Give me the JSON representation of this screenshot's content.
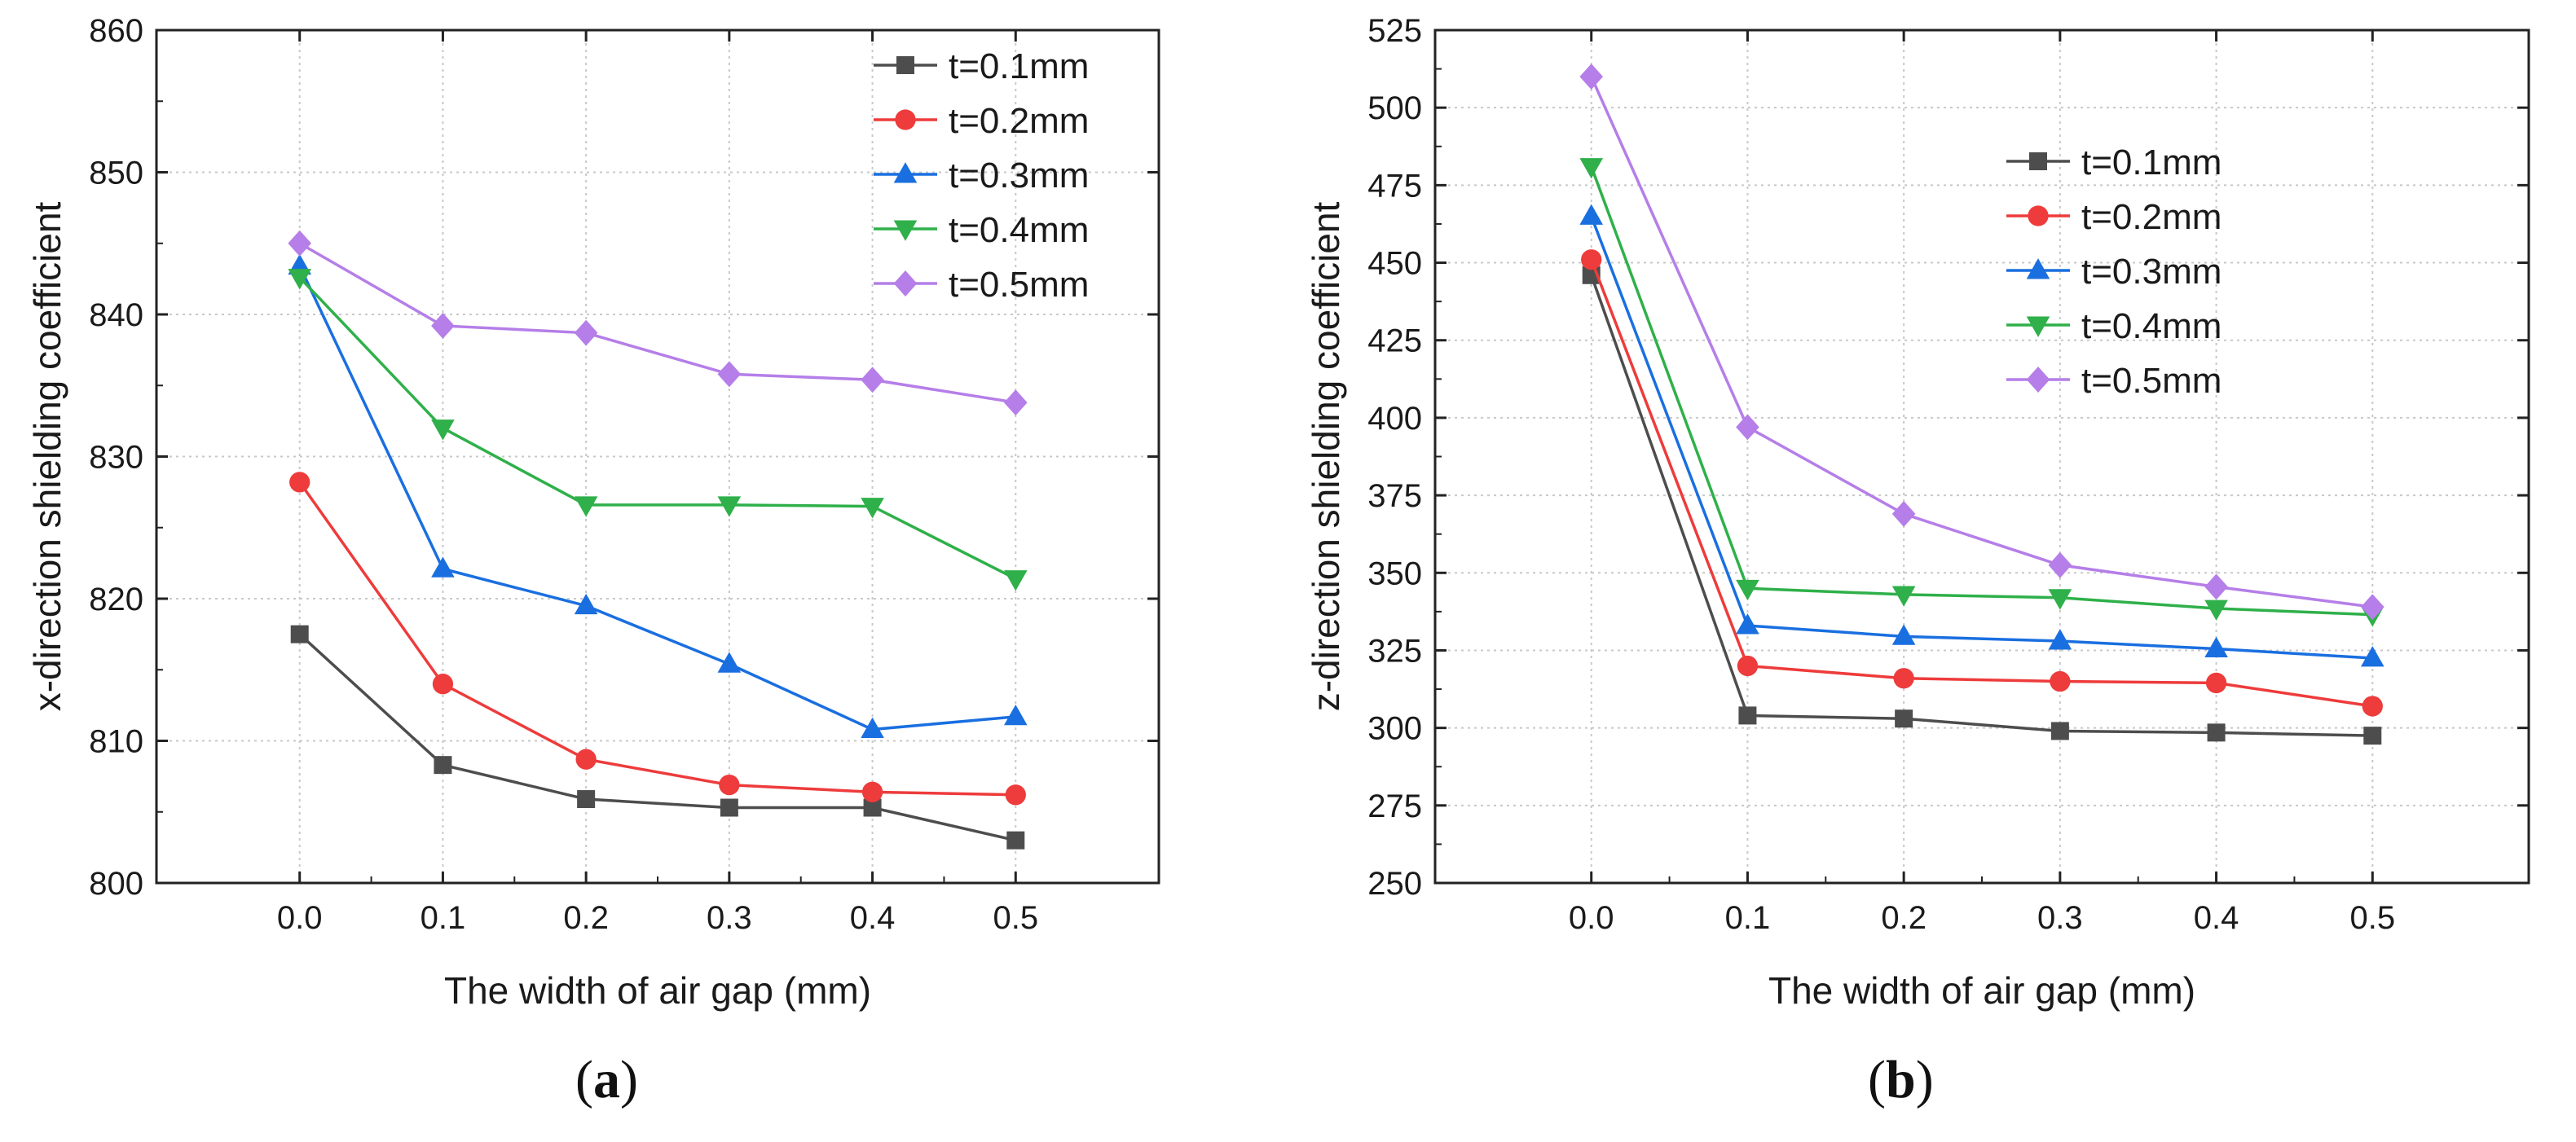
{
  "chart_data": [
    {
      "type": "line",
      "panel": "(a)",
      "title": "",
      "xlabel": "The width of air gap (mm)",
      "ylabel": "x-direction shielding coefficient",
      "x": [
        0.0,
        0.1,
        0.2,
        0.3,
        0.4,
        0.5
      ],
      "x_tick_labels": [
        "0.0",
        "0.1",
        "0.2",
        "0.3",
        "0.4",
        "0.5"
      ],
      "xlim": [
        -0.1,
        0.6
      ],
      "ylim": [
        800,
        860
      ],
      "y_ticks": [
        800,
        810,
        820,
        830,
        840,
        850,
        860
      ],
      "grid": true,
      "legend_position": "top-right",
      "series": [
        {
          "name": "t=0.1mm",
          "color": "#4d4d4d",
          "marker": "square",
          "values": [
            817.5,
            808.3,
            805.9,
            805.3,
            805.3,
            803.0
          ]
        },
        {
          "name": "t=0.2mm",
          "color": "#ee3b3b",
          "marker": "circle",
          "values": [
            828.2,
            814.0,
            808.7,
            806.9,
            806.4,
            806.2
          ]
        },
        {
          "name": "t=0.3mm",
          "color": "#1a6fe0",
          "marker": "triangle-up",
          "values": [
            843.4,
            822.1,
            819.5,
            815.4,
            810.8,
            811.7
          ]
        },
        {
          "name": "t=0.4mm",
          "color": "#2fb04a",
          "marker": "triangle-down",
          "values": [
            842.6,
            832.0,
            826.6,
            826.6,
            826.5,
            821.4
          ]
        },
        {
          "name": "t=0.5mm",
          "color": "#b57ee8",
          "marker": "diamond",
          "values": [
            845.0,
            839.2,
            838.7,
            835.8,
            835.4,
            833.8
          ]
        }
      ]
    },
    {
      "type": "line",
      "panel": "(b)",
      "title": "",
      "xlabel": "The width of air gap (mm)",
      "ylabel": "z-direction shielding coefficient",
      "x": [
        0.0,
        0.1,
        0.2,
        0.3,
        0.4,
        0.5
      ],
      "x_tick_labels": [
        "0.0",
        "0.1",
        "0.2",
        "0.3",
        "0.4",
        "0.5"
      ],
      "xlim": [
        -0.1,
        0.6
      ],
      "ylim": [
        250,
        525
      ],
      "y_ticks": [
        250,
        275,
        300,
        325,
        350,
        375,
        400,
        425,
        450,
        475,
        500,
        525
      ],
      "grid": true,
      "legend_position": "top-center",
      "series": [
        {
          "name": "t=0.1mm",
          "color": "#4d4d4d",
          "marker": "square",
          "values": [
            446,
            304,
            303,
            299,
            298.5,
            297.5
          ]
        },
        {
          "name": "t=0.2mm",
          "color": "#ee3b3b",
          "marker": "circle",
          "values": [
            451,
            320,
            316,
            315,
            314.5,
            307
          ]
        },
        {
          "name": "t=0.3mm",
          "color": "#1a6fe0",
          "marker": "triangle-up",
          "values": [
            465,
            333,
            329.5,
            328,
            325.5,
            322.5
          ]
        },
        {
          "name": "t=0.4mm",
          "color": "#2fb04a",
          "marker": "triangle-down",
          "values": [
            481,
            345,
            343,
            342,
            338.5,
            336.5
          ]
        },
        {
          "name": "t=0.5mm",
          "color": "#b57ee8",
          "marker": "diamond",
          "values": [
            510,
            397,
            369,
            352.5,
            345.5,
            339
          ]
        }
      ]
    }
  ],
  "captions": {
    "a": "a",
    "b": "b"
  }
}
